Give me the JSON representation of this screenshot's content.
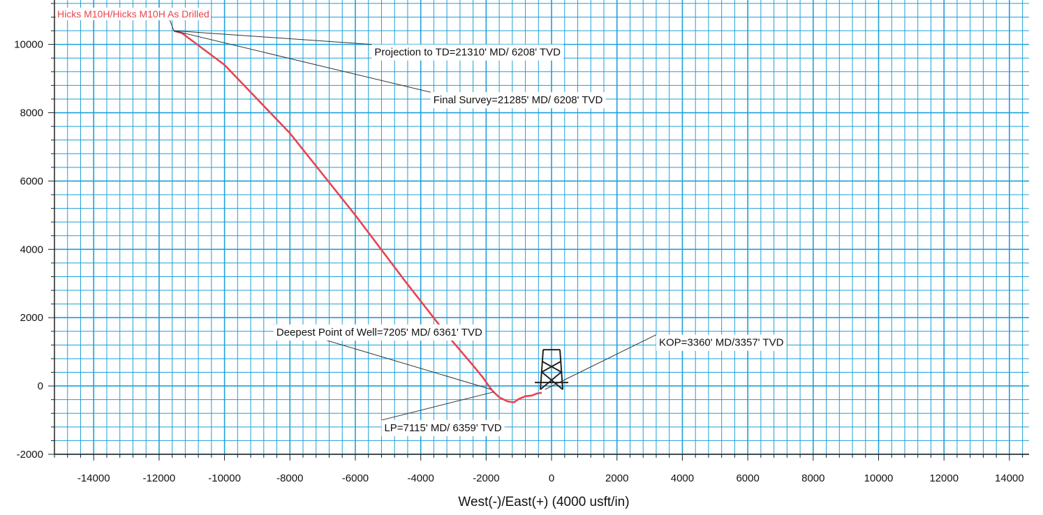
{
  "chart_data": {
    "type": "line",
    "title": "",
    "xlabel": "West(-)/East(+) (4000 usft/in)",
    "ylabel": "",
    "xlim": [
      -15200,
      14600
    ],
    "ylim": [
      -2000,
      11300
    ],
    "x_ticks": [
      -14000,
      -12000,
      -10000,
      -8000,
      -6000,
      -4000,
      -2000,
      0,
      2000,
      4000,
      6000,
      8000,
      10000,
      12000,
      14000
    ],
    "y_ticks": [
      -2000,
      0,
      2000,
      4000,
      6000,
      8000,
      10000
    ],
    "grid": true,
    "grid_minor_step": 400,
    "grid_color": "#1e9fd8",
    "series": [
      {
        "name": "Hicks M10H/Hicks M10H As Drilled",
        "color": "#e8434f",
        "points": [
          [
            -300,
            -200
          ],
          [
            -450,
            -220
          ],
          [
            -600,
            -280
          ],
          [
            -800,
            -300
          ],
          [
            -1000,
            -380
          ],
          [
            -1150,
            -480
          ],
          [
            -1350,
            -450
          ],
          [
            -1600,
            -330
          ],
          [
            -1800,
            -150
          ],
          [
            -1900,
            -20
          ],
          [
            -2100,
            250
          ],
          [
            -2400,
            600
          ],
          [
            -3200,
            1500
          ],
          [
            -4500,
            3100
          ],
          [
            -6000,
            5000
          ],
          [
            -8000,
            7400
          ],
          [
            -10000,
            9400
          ],
          [
            -11300,
            10330
          ],
          [
            -11550,
            10400
          ]
        ]
      }
    ],
    "annotations": [
      {
        "text": "Projection to TD=21310' MD/ 6208' TVD"
      },
      {
        "text": "Final Survey=21285' MD/ 6208' TVD"
      },
      {
        "text": "Deepest Point of Well=7205' MD/ 6361' TVD"
      },
      {
        "text": "KOP=3360' MD/3357' TVD"
      },
      {
        "text": "LP=7115' MD/ 6359' TVD"
      }
    ],
    "annotation_targets": [
      [
        -11550,
        10400
      ],
      [
        -11550,
        10400
      ],
      [
        -1850,
        -100
      ],
      [
        -200,
        -100
      ],
      [
        -1750,
        -170
      ]
    ],
    "annotation_anchors": [
      [
        -5500,
        10000
      ],
      [
        -3700,
        8600
      ],
      [
        -8500,
        1800
      ],
      [
        3200,
        1500
      ],
      [
        -5200,
        -1000
      ]
    ],
    "rig_location": [
      0,
      0
    ]
  }
}
